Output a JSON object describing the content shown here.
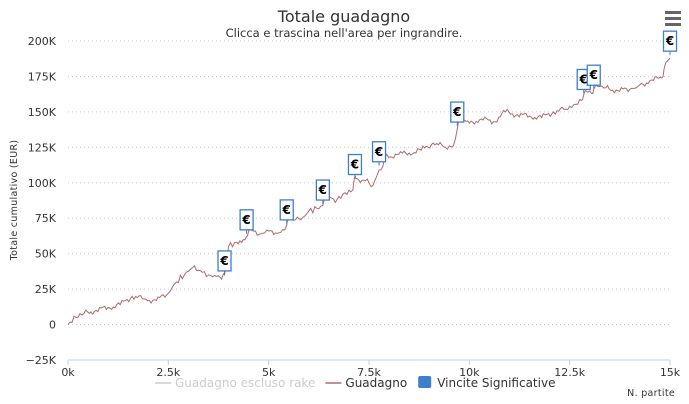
{
  "chart_data": {
    "type": "line",
    "title": "Totale guadagno",
    "subtitle": "Clicca e trascina nell'area per ingrandire.",
    "ylabel": "Totale cumulativo (EUR)",
    "xlabel": "N. partite",
    "xlim": [
      0,
      15000
    ],
    "ylim": [
      -25000,
      200000
    ],
    "x_ticks": [
      0,
      2500,
      5000,
      7500,
      10000,
      12500,
      15000
    ],
    "x_tick_labels": [
      "0k",
      "2.5k",
      "5k",
      "7.5k",
      "10k",
      "12.5k",
      "15k"
    ],
    "y_ticks": [
      -25000,
      0,
      25000,
      50000,
      75000,
      100000,
      125000,
      150000,
      175000,
      200000
    ],
    "y_tick_labels": [
      "−25K",
      "0",
      "25K",
      "50K",
      "75K",
      "100K",
      "125K",
      "150K",
      "175K",
      "200K"
    ],
    "grid": true,
    "legend_position": "bottom-center",
    "series": [
      {
        "name": "Guadagno escluso rake",
        "color": "#cccccc",
        "visible": false,
        "x": [],
        "y": []
      },
      {
        "name": "Guadagno",
        "color": "#b06a6a",
        "visible": true,
        "x": [
          0,
          200,
          400,
          700,
          1000,
          1300,
          1600,
          1900,
          2200,
          2500,
          2700,
          2900,
          3100,
          3300,
          3500,
          3700,
          3800,
          3850,
          3900,
          4000,
          4200,
          4450,
          4500,
          4800,
          5000,
          5300,
          5450,
          5500,
          5800,
          6000,
          6200,
          6350,
          6400,
          6700,
          6900,
          7100,
          7150,
          7200,
          7500,
          7600,
          7700,
          7850,
          7900,
          8200,
          8500,
          8800,
          9100,
          9400,
          9600,
          9700,
          9750,
          10000,
          10300,
          10600,
          10900,
          11200,
          11500,
          11800,
          12100,
          12400,
          12600,
          12800,
          12850,
          12900,
          13050,
          13100,
          13200,
          13400,
          13700,
          14000,
          14200,
          14500,
          14800,
          14850,
          14900,
          15000
        ],
        "y": [
          0,
          5000,
          8000,
          10000,
          12000,
          14000,
          20000,
          18000,
          17000,
          22000,
          30000,
          35000,
          40000,
          38000,
          35000,
          34000,
          33000,
          34000,
          35000,
          55000,
          58000,
          62000,
          66000,
          64000,
          66000,
          65000,
          70000,
          76000,
          74000,
          80000,
          82000,
          84000,
          90000,
          88000,
          93000,
          95000,
          105000,
          103000,
          100000,
          98000,
          105000,
          112000,
          118000,
          120000,
          121000,
          123000,
          128000,
          125000,
          126000,
          138000,
          144000,
          142000,
          145000,
          143000,
          150000,
          148000,
          147000,
          146000,
          150000,
          152000,
          155000,
          158000,
          162000,
          165000,
          163000,
          166000,
          168000,
          167000,
          165000,
          166000,
          168000,
          172000,
          174000,
          180000,
          185000,
          188000
        ]
      },
      {
        "name": "Vincite Significative",
        "color": "#3d7ecf",
        "symbol": "€",
        "flags_x": [
          3900,
          4450,
          5450,
          6350,
          7150,
          7750,
          9700,
          12850,
          13100,
          15000
        ],
        "flags_y": [
          35000,
          64000,
          71000,
          85000,
          103000,
          112000,
          140000,
          163000,
          166000,
          190000
        ]
      }
    ]
  },
  "menu": {
    "icon": "hamburger-menu-icon"
  }
}
